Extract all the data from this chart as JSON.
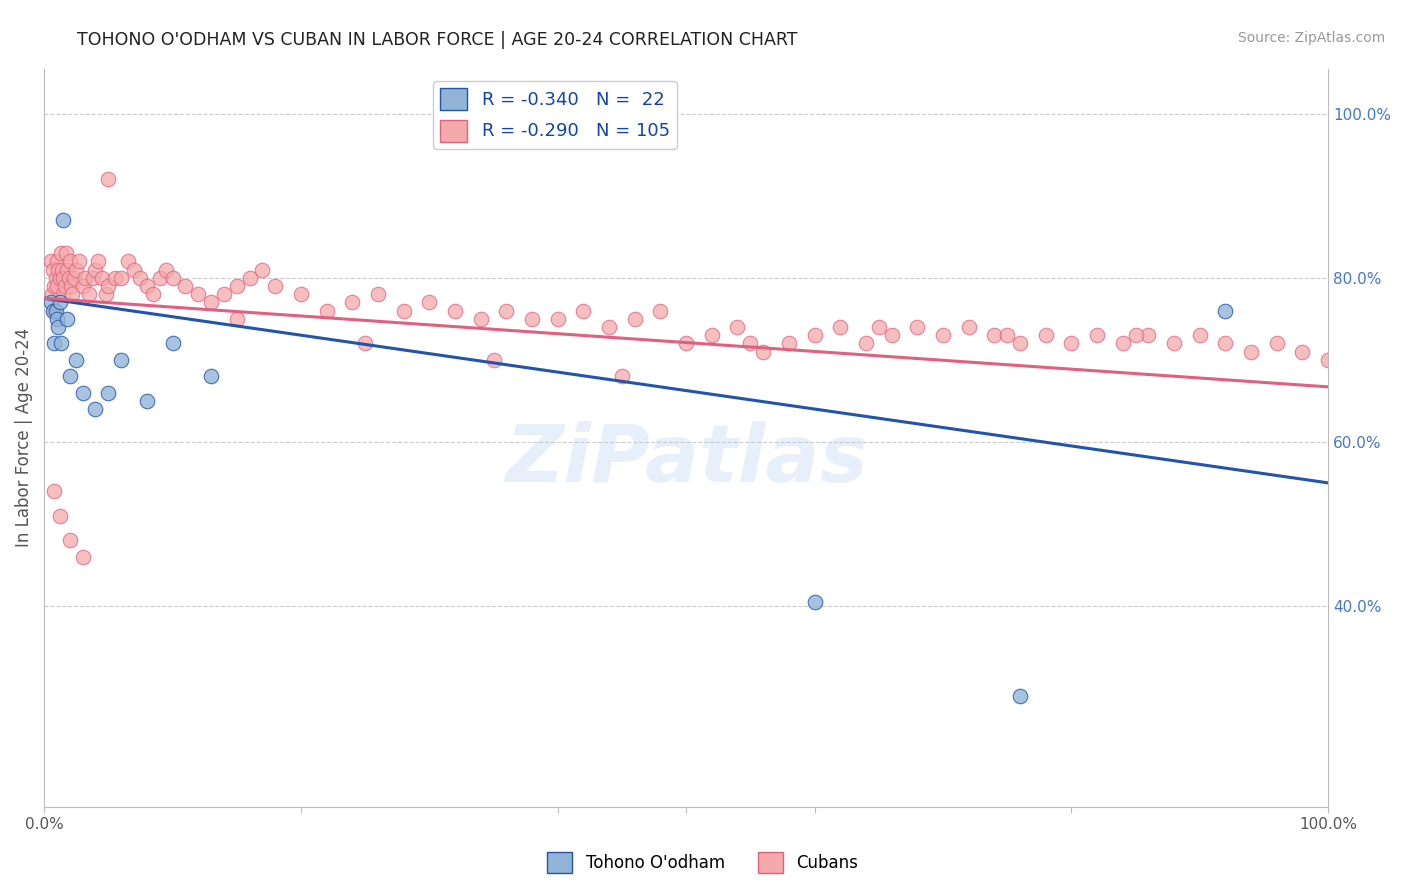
{
  "title": "TOHONO O'ODHAM VS CUBAN IN LABOR FORCE | AGE 20-24 CORRELATION CHART",
  "source": "Source: ZipAtlas.com",
  "ylabel": "In Labor Force | Age 20-24",
  "legend_blue_r": "-0.340",
  "legend_blue_n": "22",
  "legend_pink_r": "-0.290",
  "legend_pink_n": "105",
  "legend_label_blue": "Tohono O'odham",
  "legend_label_pink": "Cubans",
  "blue_color": "#92B4D7",
  "pink_color": "#F4AAAA",
  "trendline_blue": "#2255AA",
  "trendline_pink": "#E06080",
  "watermark": "ZiPatlas",
  "blue_points_x": [
    0.005,
    0.007,
    0.008,
    0.009,
    0.01,
    0.011,
    0.012,
    0.013,
    0.015,
    0.018,
    0.02,
    0.025,
    0.03,
    0.04,
    0.05,
    0.06,
    0.08,
    0.1,
    0.13,
    0.6,
    0.76,
    0.92
  ],
  "blue_points_y": [
    0.77,
    0.76,
    0.72,
    0.76,
    0.75,
    0.74,
    0.77,
    0.72,
    0.87,
    0.75,
    0.68,
    0.7,
    0.66,
    0.64,
    0.66,
    0.7,
    0.65,
    0.72,
    0.68,
    0.405,
    0.29,
    0.76
  ],
  "pink_points_x": [
    0.005,
    0.006,
    0.007,
    0.008,
    0.008,
    0.009,
    0.01,
    0.01,
    0.011,
    0.012,
    0.013,
    0.014,
    0.015,
    0.015,
    0.016,
    0.017,
    0.018,
    0.019,
    0.02,
    0.021,
    0.022,
    0.023,
    0.025,
    0.027,
    0.03,
    0.032,
    0.035,
    0.038,
    0.04,
    0.042,
    0.045,
    0.048,
    0.05,
    0.055,
    0.06,
    0.065,
    0.07,
    0.075,
    0.08,
    0.085,
    0.09,
    0.095,
    0.1,
    0.11,
    0.12,
    0.13,
    0.14,
    0.15,
    0.16,
    0.17,
    0.18,
    0.2,
    0.22,
    0.24,
    0.26,
    0.28,
    0.3,
    0.32,
    0.34,
    0.36,
    0.38,
    0.4,
    0.42,
    0.44,
    0.46,
    0.48,
    0.5,
    0.52,
    0.54,
    0.56,
    0.58,
    0.6,
    0.62,
    0.64,
    0.66,
    0.68,
    0.7,
    0.72,
    0.74,
    0.76,
    0.78,
    0.8,
    0.82,
    0.84,
    0.86,
    0.88,
    0.9,
    0.92,
    0.94,
    0.96,
    0.98,
    1.0,
    0.75,
    0.85,
    0.65,
    0.55,
    0.45,
    0.35,
    0.25,
    0.15,
    0.05,
    0.03,
    0.02,
    0.012,
    0.008
  ],
  "pink_points_y": [
    0.82,
    0.78,
    0.81,
    0.79,
    0.76,
    0.8,
    0.82,
    0.79,
    0.81,
    0.8,
    0.83,
    0.81,
    0.78,
    0.8,
    0.79,
    0.83,
    0.81,
    0.8,
    0.82,
    0.79,
    0.78,
    0.8,
    0.81,
    0.82,
    0.79,
    0.8,
    0.78,
    0.8,
    0.81,
    0.82,
    0.8,
    0.78,
    0.79,
    0.8,
    0.8,
    0.82,
    0.81,
    0.8,
    0.79,
    0.78,
    0.8,
    0.81,
    0.8,
    0.79,
    0.78,
    0.77,
    0.78,
    0.79,
    0.8,
    0.81,
    0.79,
    0.78,
    0.76,
    0.77,
    0.78,
    0.76,
    0.77,
    0.76,
    0.75,
    0.76,
    0.75,
    0.75,
    0.76,
    0.74,
    0.75,
    0.76,
    0.72,
    0.73,
    0.74,
    0.71,
    0.72,
    0.73,
    0.74,
    0.72,
    0.73,
    0.74,
    0.73,
    0.74,
    0.73,
    0.72,
    0.73,
    0.72,
    0.73,
    0.72,
    0.73,
    0.72,
    0.73,
    0.72,
    0.71,
    0.72,
    0.71,
    0.7,
    0.73,
    0.73,
    0.74,
    0.72,
    0.68,
    0.7,
    0.72,
    0.75,
    0.92,
    0.46,
    0.48,
    0.51,
    0.54
  ]
}
